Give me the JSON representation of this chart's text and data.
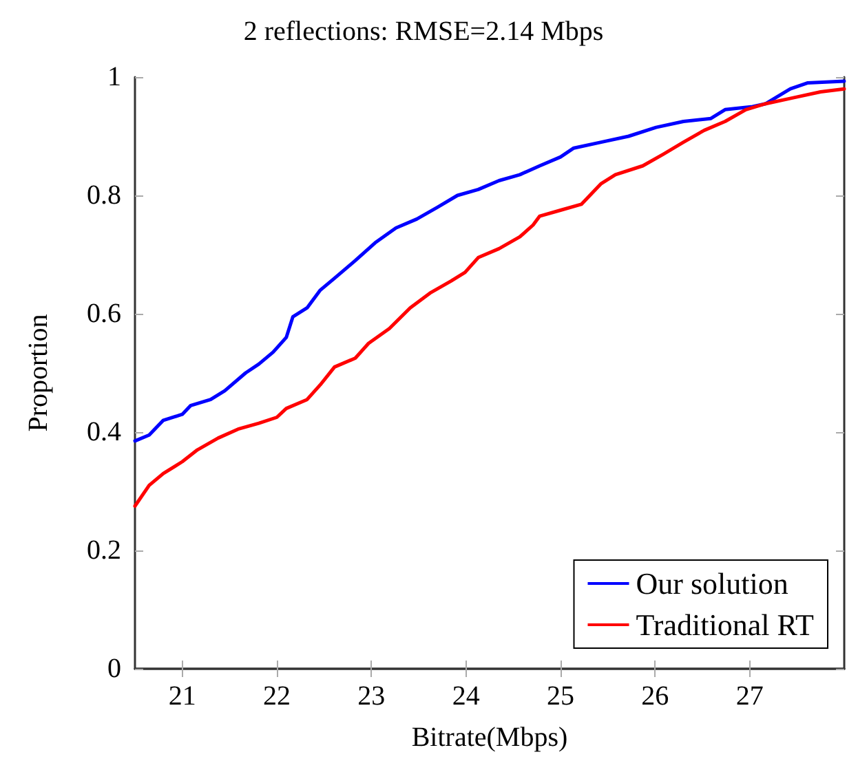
{
  "chart_data": {
    "type": "line",
    "title": "2 reflections: RMSE=2.14 Mbps",
    "xlabel": "Bitrate(Mbps)",
    "ylabel": "Proportion",
    "xlim": [
      20.5,
      28
    ],
    "xticks": [
      21,
      22,
      23,
      24,
      25,
      26,
      27
    ],
    "ylim": [
      0,
      1
    ],
    "yticks": [
      0,
      0.2,
      0.4,
      0.6,
      0.8,
      1
    ],
    "grid": false,
    "legend": "bottom right",
    "marker": "none",
    "line_style": "solid",
    "series": [
      {
        "name": "Our solution",
        "color": "#0000ff",
        "x": [
          20.5,
          20.65,
          20.8,
          21,
          21.09,
          21.3,
          21.45,
          21.67,
          21.81,
          21.96,
          22.1,
          22.17,
          22.32,
          22.46,
          22.61,
          22.83,
          23.04,
          23.26,
          23.48,
          23.7,
          23.91,
          24.13,
          24.35,
          24.57,
          24.78,
          25.0,
          25.14,
          25.43,
          25.72,
          26.01,
          26.3,
          26.59,
          26.74,
          27.03,
          27.17,
          27.43,
          27.61,
          28
        ],
        "values": [
          0.385,
          0.395,
          0.42,
          0.43,
          0.445,
          0.455,
          0.47,
          0.5,
          0.515,
          0.535,
          0.56,
          0.595,
          0.61,
          0.64,
          0.66,
          0.69,
          0.72,
          0.745,
          0.76,
          0.78,
          0.8,
          0.81,
          0.825,
          0.835,
          0.85,
          0.865,
          0.88,
          0.89,
          0.9,
          0.915,
          0.925,
          0.93,
          0.945,
          0.95,
          0.955,
          0.98,
          0.99,
          0.993
        ]
      },
      {
        "name": "Traditional RT",
        "color": "#ff0000",
        "x": [
          20.5,
          20.65,
          20.8,
          21,
          21.16,
          21.38,
          21.59,
          21.81,
          22,
          22.1,
          22.32,
          22.46,
          22.61,
          22.83,
          22.97,
          23.19,
          23.41,
          23.62,
          23.84,
          23.99,
          24.13,
          24.35,
          24.57,
          24.71,
          24.78,
          25.0,
          25.22,
          25.43,
          25.58,
          25.87,
          26.09,
          26.3,
          26.52,
          26.74,
          26.96,
          27.17,
          27.46,
          27.75,
          28
        ],
        "values": [
          0.275,
          0.31,
          0.33,
          0.35,
          0.37,
          0.39,
          0.405,
          0.415,
          0.425,
          0.44,
          0.455,
          0.48,
          0.51,
          0.525,
          0.55,
          0.575,
          0.61,
          0.635,
          0.655,
          0.67,
          0.695,
          0.71,
          0.73,
          0.75,
          0.765,
          0.775,
          0.785,
          0.82,
          0.835,
          0.85,
          0.87,
          0.89,
          0.91,
          0.925,
          0.945,
          0.955,
          0.965,
          0.975,
          0.98
        ]
      }
    ]
  }
}
